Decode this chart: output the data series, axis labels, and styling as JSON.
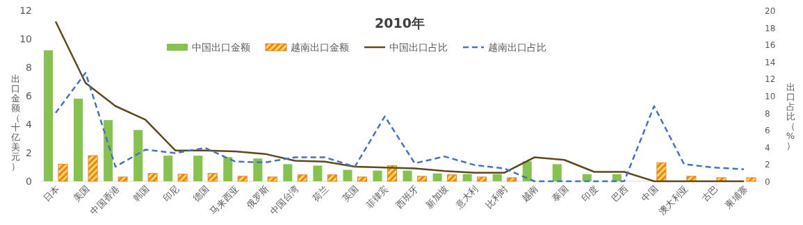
{
  "chart_data": {
    "type": "bar",
    "title": "2010年",
    "ylabel": "出口金额（十亿美元）",
    "y2label": "出口占比（%）",
    "categories": [
      "日本",
      "美国",
      "中国香港",
      "韩国",
      "印尼",
      "德国",
      "马来西亚",
      "俄罗斯",
      "中国台湾",
      "荷兰",
      "英国",
      "菲律宾",
      "西班牙",
      "新加坡",
      "意大利",
      "比利时",
      "越南",
      "泰国",
      "印度",
      "巴西",
      "中国",
      "澳大利亚",
      "古巴",
      "柬埔寨"
    ],
    "series": [
      {
        "name": "中国出口金额",
        "color": "#86c34e",
        "values": [
          9.2,
          5.8,
          4.3,
          3.6,
          1.8,
          1.8,
          1.7,
          1.6,
          1.2,
          1.1,
          0.8,
          0.75,
          0.75,
          0.55,
          0.5,
          0.5,
          1.4,
          1.2,
          0.5,
          0.5,
          null,
          null,
          null,
          null
        ]
      },
      {
        "name": "越南出口金额",
        "color": "#f07f2a",
        "values": [
          1.2,
          1.8,
          0.3,
          0.55,
          0.5,
          0.55,
          0.35,
          0.3,
          0.45,
          0.45,
          0.3,
          1.1,
          0.35,
          0.45,
          0.3,
          0.25,
          null,
          null,
          null,
          null,
          1.3,
          0.35,
          0.25,
          0.25
        ]
      },
      {
        "name": "中国出口占比",
        "type": "line",
        "axis": "y2",
        "color": "#5c4a1e",
        "line_style": "solid",
        "values": [
          18.7,
          11.5,
          8.8,
          7.2,
          3.6,
          3.6,
          3.5,
          3.2,
          2.4,
          2.3,
          1.7,
          1.6,
          1.5,
          1.2,
          1.0,
          1.0,
          2.8,
          2.5,
          1.1,
          1.1,
          0,
          0,
          0,
          0
        ]
      },
      {
        "name": "越南出口占比",
        "type": "line",
        "axis": "y2",
        "color": "#4472c4",
        "line_style": "dashed",
        "values": [
          8.0,
          12.7,
          1.7,
          3.7,
          3.3,
          3.9,
          2.3,
          2.2,
          2.8,
          2.8,
          1.7,
          7.6,
          2.1,
          2.9,
          1.9,
          1.5,
          0,
          0,
          0,
          0,
          8.8,
          2.0,
          1.6,
          1.4
        ]
      }
    ],
    "ylim": [
      0,
      12
    ],
    "yticks": [
      0,
      2,
      4,
      6,
      8,
      10,
      12
    ],
    "y2lim": [
      0,
      20
    ],
    "y2ticks": [
      0,
      2,
      4,
      6,
      8,
      10,
      12,
      14,
      16,
      18,
      20
    ],
    "grid": false,
    "legend": "top"
  }
}
